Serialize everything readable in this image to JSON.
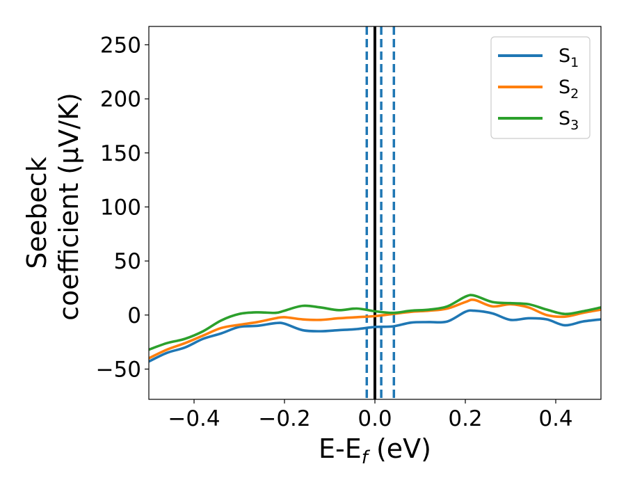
{
  "chart_data": {
    "type": "line",
    "xlabel": "E-E",
    "xlabel_sub": "f",
    "xlabel_unit": "(eV)",
    "ylabel_line1": "Seebeck",
    "ylabel_line2": "coefficient  (μV/K)",
    "xlim": [
      -0.5,
      0.5
    ],
    "ylim": [
      -78,
      267
    ],
    "xticks": [
      -0.4,
      -0.2,
      0.0,
      0.2,
      0.4
    ],
    "xtick_labels": [
      "−0.4",
      "−0.2",
      "0.0",
      "0.2",
      "0.4"
    ],
    "yticks": [
      -50,
      0,
      50,
      100,
      150,
      200,
      250
    ],
    "ytick_labels": [
      "−50",
      "0",
      "50",
      "100",
      "150",
      "200",
      "250"
    ],
    "grid": false,
    "legend_position": "top-right",
    "colors": {
      "S1": "#1f77b4",
      "S2": "#ff7f0e",
      "S3": "#2ca02c",
      "fermi": "#000000"
    },
    "vlines": [
      {
        "x": 0.0,
        "style": "solid",
        "color": "#000000"
      },
      {
        "x": -0.018,
        "style": "dashed",
        "color": "#1f77b4"
      },
      {
        "x": 0.014,
        "style": "dashed",
        "color": "#1f77b4"
      },
      {
        "x": 0.042,
        "style": "dashed",
        "color": "#1f77b4"
      }
    ],
    "series": [
      {
        "name": "S",
        "sub": "1",
        "color": "#1f77b4",
        "x": [
          -0.5,
          -0.46,
          -0.42,
          -0.38,
          -0.34,
          -0.3,
          -0.26,
          -0.22,
          -0.2,
          -0.16,
          -0.12,
          -0.08,
          -0.04,
          0.0,
          0.04,
          0.08,
          0.12,
          0.16,
          0.2,
          0.22,
          0.26,
          0.3,
          0.34,
          0.38,
          0.42,
          0.46,
          0.5
        ],
        "y": [
          -43,
          -35,
          -30,
          -22,
          -17,
          -11,
          -10,
          -7.5,
          -8,
          -14,
          -15,
          -14,
          -13,
          -11,
          -10.5,
          -7,
          -6.5,
          -6,
          3,
          4,
          1.5,
          -4.5,
          -3,
          -4,
          -9.5,
          -6,
          -4
        ]
      },
      {
        "name": "S",
        "sub": "2",
        "color": "#ff7f0e",
        "x": [
          -0.5,
          -0.46,
          -0.42,
          -0.38,
          -0.34,
          -0.3,
          -0.26,
          -0.22,
          -0.2,
          -0.16,
          -0.12,
          -0.08,
          -0.04,
          0.0,
          0.04,
          0.08,
          0.12,
          0.16,
          0.2,
          0.22,
          0.26,
          0.3,
          0.34,
          0.38,
          0.42,
          0.46,
          0.5
        ],
        "y": [
          -40,
          -32,
          -26,
          -19,
          -12,
          -9,
          -6.5,
          -3,
          -2,
          -4,
          -4.5,
          -3,
          -2,
          -1,
          1,
          3,
          4,
          6,
          12,
          14,
          8,
          10,
          7,
          0,
          -1.5,
          2,
          5
        ]
      },
      {
        "name": "S",
        "sub": "3",
        "color": "#2ca02c",
        "x": [
          -0.5,
          -0.46,
          -0.42,
          -0.38,
          -0.34,
          -0.3,
          -0.26,
          -0.22,
          -0.2,
          -0.16,
          -0.12,
          -0.08,
          -0.04,
          0.0,
          0.04,
          0.08,
          0.12,
          0.16,
          0.2,
          0.22,
          0.26,
          0.3,
          0.34,
          0.38,
          0.42,
          0.46,
          0.5
        ],
        "y": [
          -32,
          -26,
          -22,
          -15,
          -5,
          1,
          2.5,
          2,
          4,
          8.5,
          7,
          4.5,
          6,
          3.5,
          2,
          4,
          5,
          8,
          17,
          18,
          12,
          11,
          10,
          5,
          1,
          3.5,
          7
        ]
      }
    ]
  }
}
